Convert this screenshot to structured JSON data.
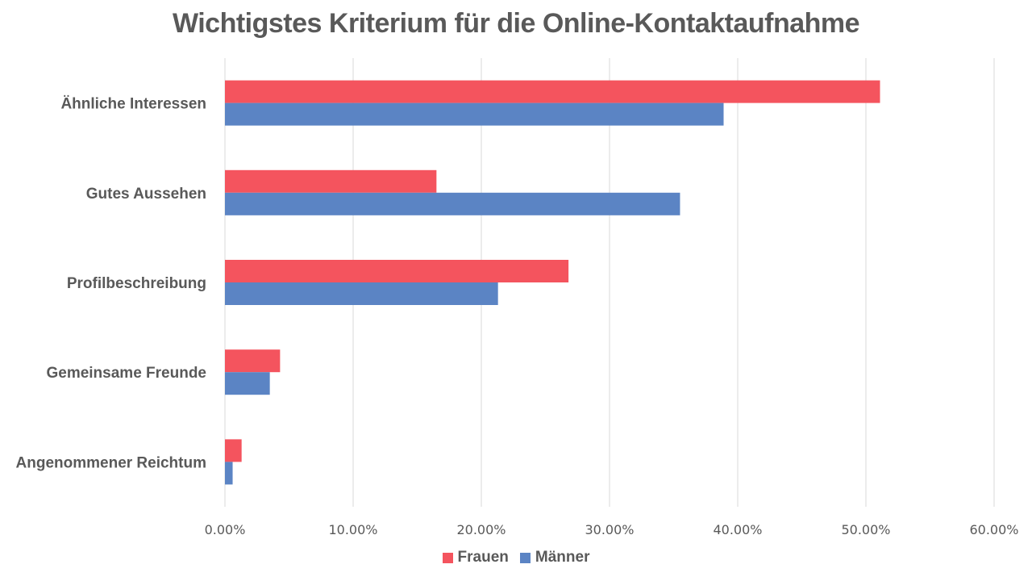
{
  "colors": {
    "frauen": "#f4545e",
    "maenner": "#5b84c4",
    "grid": "#d9d9d9",
    "text": "#595959"
  },
  "chart_data": {
    "type": "bar",
    "orientation": "horizontal",
    "title": "Wichtigstes Kriterium für die Online-Kontaktaufnahme",
    "categories": [
      "Ähnliche Interessen",
      "Gutes Aussehen",
      "Profilbeschreibung",
      "Gemeinsame Freunde",
      "Angenommener Reichtum"
    ],
    "series": [
      {
        "name": "Frauen",
        "color": "#f4545e",
        "values": [
          51.1,
          16.5,
          26.8,
          4.3,
          1.3
        ]
      },
      {
        "name": "Männer",
        "color": "#5b84c4",
        "values": [
          38.9,
          35.5,
          21.3,
          3.5,
          0.6
        ]
      }
    ],
    "xlim": [
      0,
      60
    ],
    "x_ticks": [
      "0.00%",
      "10.00%",
      "20.00%",
      "30.00%",
      "40.00%",
      "50.00%",
      "60.00%"
    ],
    "grid": true,
    "legend_position": "bottom"
  }
}
